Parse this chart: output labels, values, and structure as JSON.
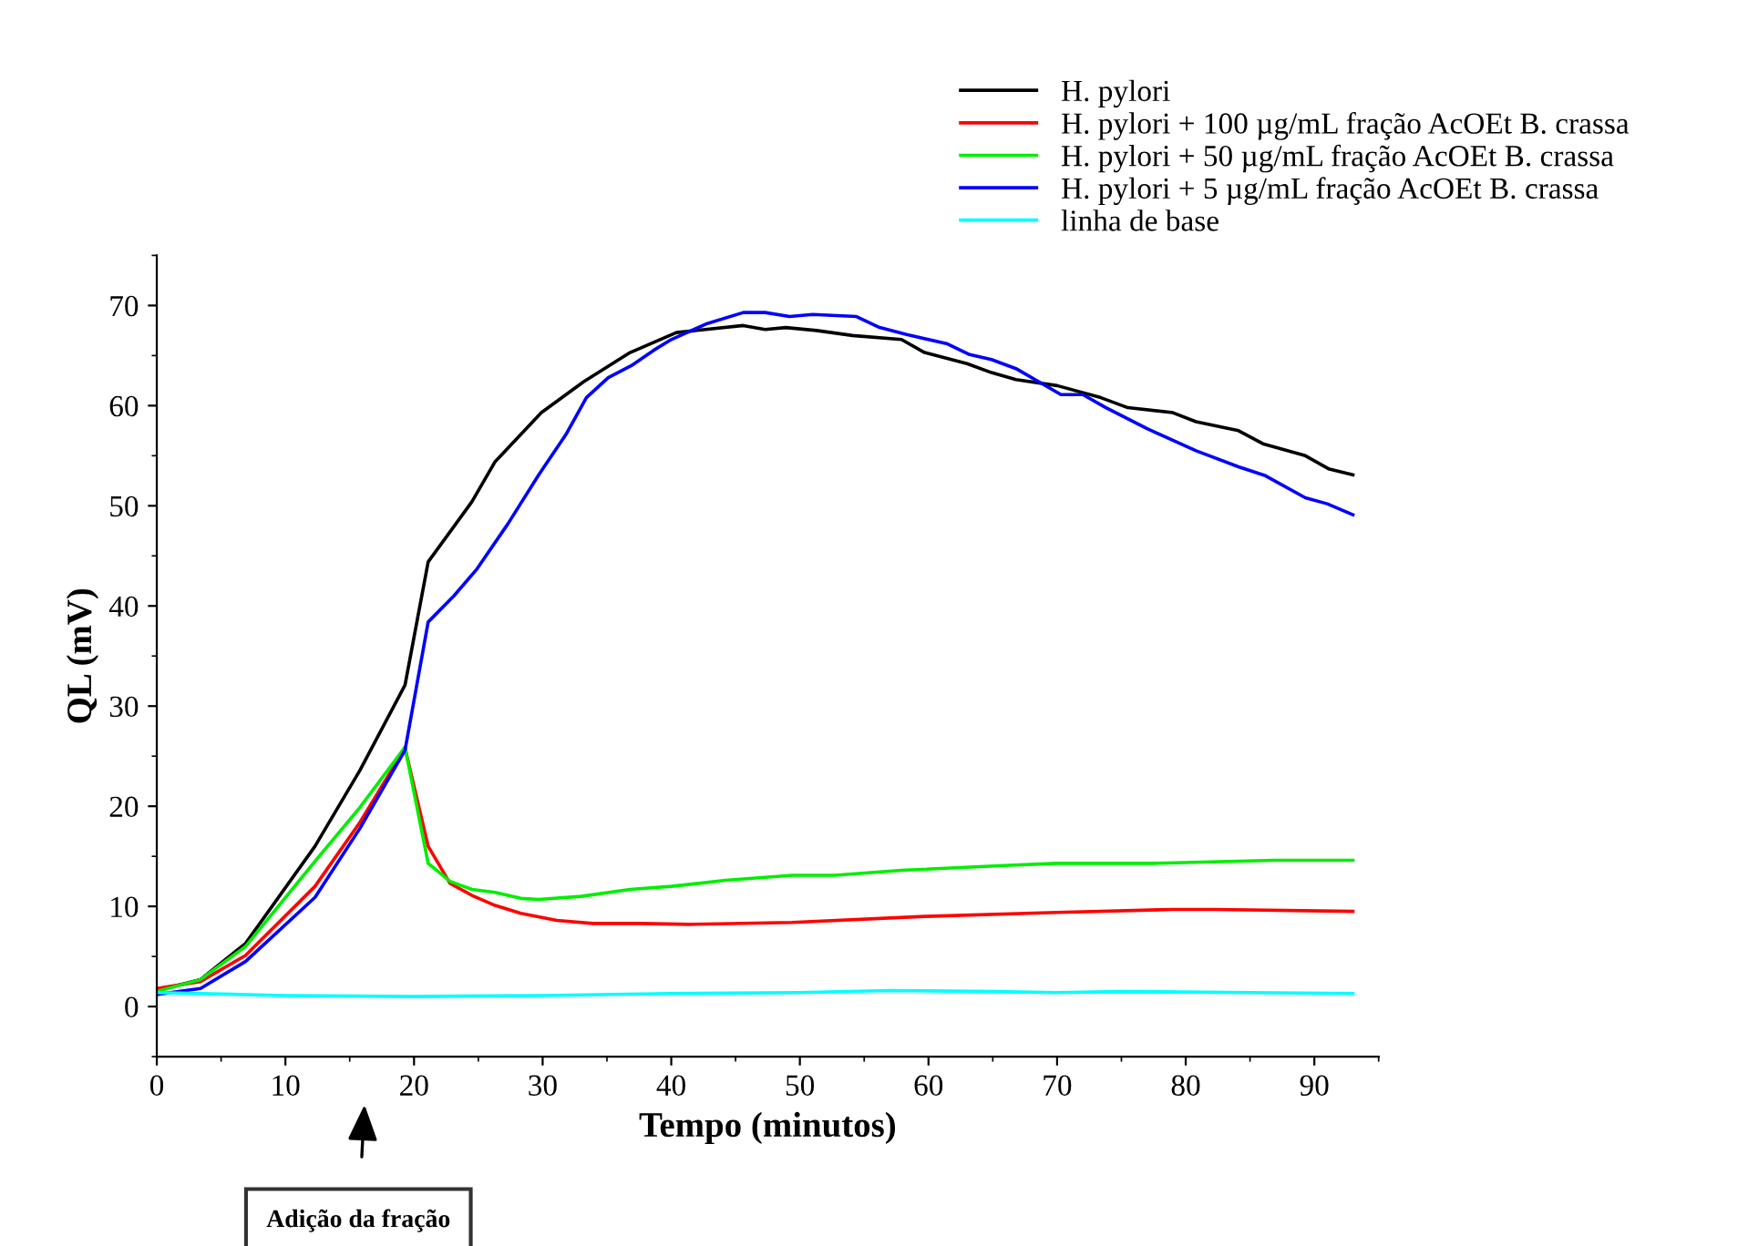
{
  "chart_data": {
    "type": "line",
    "xlabel": "Tempo (minutos)",
    "ylabel": "QL (mV)",
    "xlim": [
      0,
      95
    ],
    "ylim": [
      -5,
      75
    ],
    "xticks": [
      0,
      10,
      20,
      30,
      40,
      50,
      60,
      70,
      80,
      90
    ],
    "yticks": [
      0,
      10,
      20,
      30,
      40,
      50,
      60,
      70
    ],
    "grid": false,
    "legend": "top right",
    "line_style": "solid",
    "marker": "none",
    "annotations": [
      "Adição da fração"
    ],
    "series": [
      {
        "name": "H. pylori",
        "color": "#000000",
        "x": [
          0,
          3.4,
          6.9,
          12.3,
          15.8,
          19.3,
          21.1,
          24.5,
          26.3,
          29.9,
          33.2,
          36.8,
          40.4,
          45.6,
          47.3,
          48.9,
          51.3,
          54.1,
          57.9,
          59.7,
          63,
          64.9,
          66.8,
          70,
          73.4,
          75.5,
          79,
          80.8,
          84.1,
          86,
          89.3,
          91.1,
          93
        ],
        "values": [
          1.6,
          2.7,
          6.3,
          16,
          23.6,
          32.1,
          44.4,
          50.4,
          54.4,
          59.3,
          62.4,
          65.3,
          67.3,
          68,
          67.6,
          67.8,
          67.5,
          67,
          66.6,
          65.3,
          64.2,
          63.3,
          62.6,
          62,
          60.8,
          59.8,
          59.3,
          58.4,
          57.5,
          56.2,
          55,
          53.7,
          53.1
        ]
      },
      {
        "name": "H. pylori + 100 µg/mL fração AcOEt B. crassa",
        "color": "#ff0000",
        "x": [
          0,
          3.4,
          6.9,
          12.3,
          15.8,
          19.3,
          21.1,
          22.8,
          24.5,
          26.3,
          28.3,
          31.1,
          33.9,
          37.6,
          41.4,
          49.4,
          59.7,
          70,
          79,
          82.3,
          93
        ],
        "values": [
          1.8,
          2.5,
          5.1,
          12,
          18.4,
          25.8,
          16,
          12.3,
          11.1,
          10.1,
          9.3,
          8.6,
          8.3,
          8.3,
          8.2,
          8.4,
          9,
          9.4,
          9.7,
          9.7,
          9.5
        ]
      },
      {
        "name": "H. pylori + 50 µg/mL fração AcOEt B. crassa",
        "color": "#00ee00",
        "x": [
          0,
          3.4,
          6.9,
          12.3,
          15.8,
          19.3,
          21.1,
          22.8,
          24.5,
          26.3,
          28.3,
          29.7,
          33,
          36.8,
          40,
          44.2,
          49.4,
          52.7,
          57.9,
          66.3,
          70,
          77.5,
          86.9,
          93
        ],
        "values": [
          1.5,
          2.7,
          6,
          14.5,
          19.9,
          25.9,
          14.3,
          12.5,
          11.7,
          11.4,
          10.8,
          10.7,
          11,
          11.7,
          12,
          12.6,
          13.1,
          13.1,
          13.6,
          14.1,
          14.3,
          14.3,
          14.6,
          14.6
        ]
      },
      {
        "name": "H. pylori + 5 µg/mL fração AcOEt B. crassa",
        "color": "#0000ff",
        "x": [
          0,
          3.4,
          6.9,
          12.3,
          15.8,
          19.3,
          21.1,
          23.1,
          24.9,
          27.3,
          29.7,
          31.8,
          33.4,
          35.1,
          36.9,
          38.6,
          40,
          42.8,
          45.6,
          47.3,
          49.2,
          51,
          54.4,
          56.2,
          58.3,
          61.4,
          63.2,
          64.9,
          66.8,
          70.3,
          72,
          73.8,
          77,
          80.8,
          84.1,
          86.2,
          89.3,
          91,
          93
        ],
        "values": [
          1.2,
          1.8,
          4.5,
          10.9,
          17.8,
          25.6,
          38.4,
          41,
          43.7,
          48.2,
          53.1,
          57.1,
          60.8,
          62.8,
          64,
          65.5,
          66.6,
          68.2,
          69.3,
          69.3,
          68.9,
          69.1,
          68.9,
          67.8,
          67.1,
          66.2,
          65.1,
          64.6,
          63.7,
          61.1,
          61.1,
          59.8,
          57.7,
          55.5,
          53.9,
          53,
          50.8,
          50.2,
          49.1
        ]
      },
      {
        "name": "linha de base",
        "color": "#00ffff",
        "x": [
          0,
          10,
          20,
          30,
          40,
          50,
          57,
          65,
          70,
          75,
          85,
          93
        ],
        "values": [
          1.4,
          1.1,
          1.0,
          1.1,
          1.3,
          1.4,
          1.6,
          1.5,
          1.4,
          1.5,
          1.4,
          1.3
        ]
      }
    ]
  }
}
